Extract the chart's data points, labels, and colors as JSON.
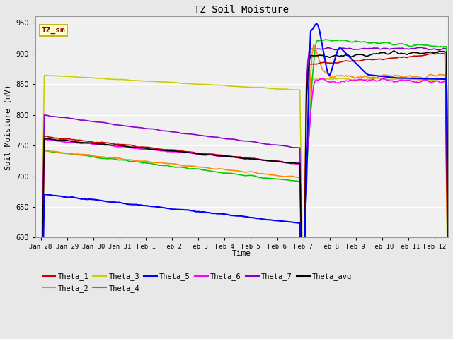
{
  "title": "TZ Soil Moisture",
  "xlabel": "Time",
  "ylabel": "Soil Moisture (mV)",
  "ylim": [
    600,
    960
  ],
  "yticks": [
    600,
    650,
    700,
    750,
    800,
    850,
    900,
    950
  ],
  "background_color": "#e8e8e8",
  "plot_bg_color": "#f0f0f0",
  "legend_label": "TZ_sm",
  "legend_bg": "#ffffcc",
  "legend_border": "#bbaa00",
  "series_colors": {
    "Theta_1": "#cc0000",
    "Theta_2": "#ff8800",
    "Theta_3": "#cccc00",
    "Theta_4": "#00cc00",
    "Theta_5": "#0000ff",
    "Theta_6": "#ff00ff",
    "Theta_7": "#8800cc",
    "Theta_avg": "#000000"
  },
  "tick_labels": [
    "Jan 28",
    "Jan 29",
    "Jan 30",
    "Jan 31",
    "Feb 1",
    "Feb 2",
    "Feb 3",
    "Feb 4",
    "Feb 5",
    "Feb 6",
    "Feb 7",
    "Feb 8",
    "Feb 9",
    "Feb 10",
    "Feb 11",
    "Feb 12"
  ],
  "figsize": [
    6.4,
    4.8
  ],
  "dpi": 100
}
